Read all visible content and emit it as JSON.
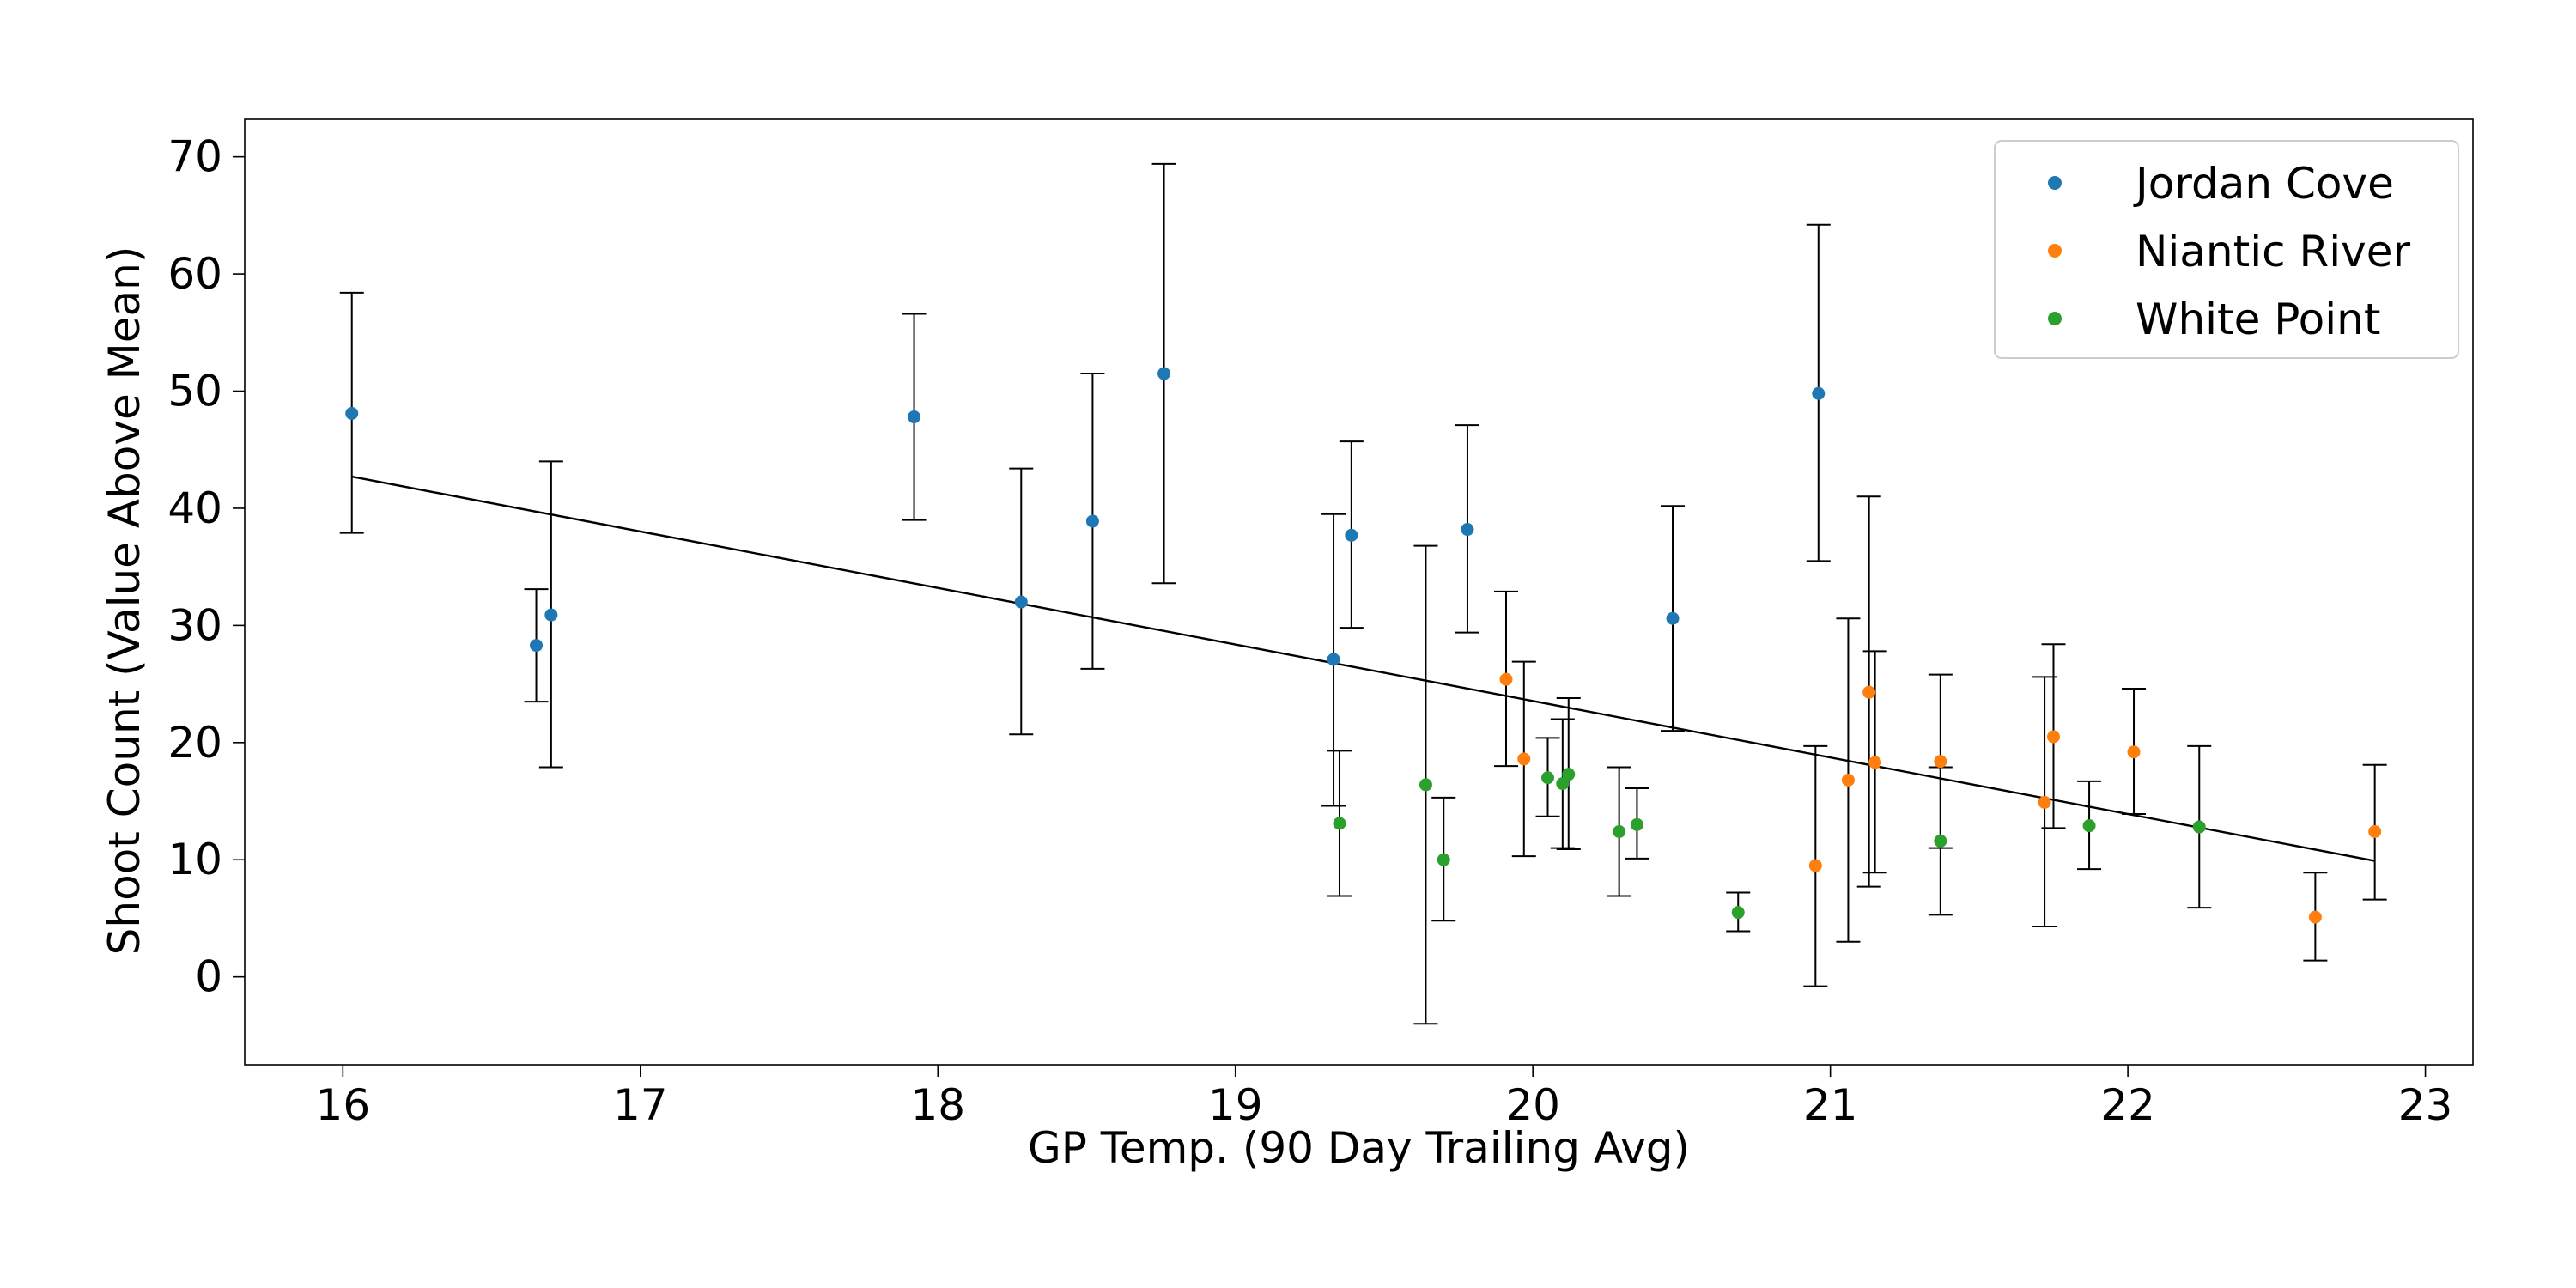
{
  "chart_data": {
    "type": "scatter",
    "title": "",
    "xlabel": "GP Temp. (90 Day Trailing Avg)",
    "ylabel": "Shoot Count (Value Above Mean)",
    "xlim": [
      15.67,
      23.16
    ],
    "ylim": [
      -7.5,
      73.2
    ],
    "xticks": [
      16,
      17,
      18,
      19,
      20,
      21,
      22,
      23
    ],
    "yticks": [
      0,
      10,
      20,
      30,
      40,
      50,
      60,
      70
    ],
    "grid": false,
    "legend_position": "top-right",
    "series": [
      {
        "name": "Jordan Cove",
        "color": "#1f77b4",
        "points": [
          {
            "x": 16.03,
            "y": 48.1,
            "lo": 37.9,
            "hi": 58.4
          },
          {
            "x": 16.65,
            "y": 28.3,
            "lo": 23.5,
            "hi": 33.1
          },
          {
            "x": 16.7,
            "y": 30.9,
            "lo": 17.9,
            "hi": 44.0
          },
          {
            "x": 17.92,
            "y": 47.8,
            "lo": 39.0,
            "hi": 56.6
          },
          {
            "x": 18.28,
            "y": 32.0,
            "lo": 20.7,
            "hi": 43.4
          },
          {
            "x": 18.52,
            "y": 38.9,
            "lo": 26.3,
            "hi": 51.5
          },
          {
            "x": 18.76,
            "y": 51.5,
            "lo": 33.6,
            "hi": 69.4
          },
          {
            "x": 19.33,
            "y": 27.1,
            "lo": 14.6,
            "hi": 39.5
          },
          {
            "x": 19.39,
            "y": 37.7,
            "lo": 29.8,
            "hi": 45.7
          },
          {
            "x": 19.78,
            "y": 38.2,
            "lo": 29.4,
            "hi": 47.1
          },
          {
            "x": 20.47,
            "y": 30.6,
            "lo": 21.0,
            "hi": 40.2
          },
          {
            "x": 20.96,
            "y": 49.8,
            "lo": 35.5,
            "hi": 64.2
          }
        ]
      },
      {
        "name": "Niantic River",
        "color": "#ff7f0e",
        "points": [
          {
            "x": 19.91,
            "y": 25.4,
            "lo": 18.0,
            "hi": 32.9
          },
          {
            "x": 19.97,
            "y": 18.6,
            "lo": 10.3,
            "hi": 26.9
          },
          {
            "x": 20.95,
            "y": 9.5,
            "lo": -0.8,
            "hi": 19.7
          },
          {
            "x": 21.06,
            "y": 16.8,
            "lo": 3.0,
            "hi": 30.6
          },
          {
            "x": 21.13,
            "y": 24.3,
            "lo": 7.7,
            "hi": 41.0
          },
          {
            "x": 21.15,
            "y": 18.3,
            "lo": 8.9,
            "hi": 27.8
          },
          {
            "x": 21.37,
            "y": 18.4,
            "lo": 11.0,
            "hi": 25.8
          },
          {
            "x": 21.72,
            "y": 14.9,
            "lo": 4.3,
            "hi": 25.6
          },
          {
            "x": 21.75,
            "y": 20.5,
            "lo": 12.7,
            "hi": 28.4
          },
          {
            "x": 22.02,
            "y": 19.2,
            "lo": 13.9,
            "hi": 24.6
          },
          {
            "x": 22.63,
            "y": 5.1,
            "lo": 1.4,
            "hi": 8.9
          },
          {
            "x": 22.83,
            "y": 12.4,
            "lo": 6.6,
            "hi": 18.1
          }
        ]
      },
      {
        "name": "White Point",
        "color": "#2ca02c",
        "points": [
          {
            "x": 19.35,
            "y": 13.1,
            "lo": 6.9,
            "hi": 19.3
          },
          {
            "x": 19.64,
            "y": 16.4,
            "lo": -4.0,
            "hi": 36.8
          },
          {
            "x": 19.7,
            "y": 10.0,
            "lo": 4.8,
            "hi": 15.3
          },
          {
            "x": 20.05,
            "y": 17.0,
            "lo": 13.7,
            "hi": 20.4
          },
          {
            "x": 20.1,
            "y": 16.5,
            "lo": 11.0,
            "hi": 22.0
          },
          {
            "x": 20.12,
            "y": 17.3,
            "lo": 10.9,
            "hi": 23.8
          },
          {
            "x": 20.29,
            "y": 12.4,
            "lo": 6.9,
            "hi": 17.9
          },
          {
            "x": 20.35,
            "y": 13.0,
            "lo": 10.1,
            "hi": 16.1
          },
          {
            "x": 20.69,
            "y": 5.5,
            "lo": 3.9,
            "hi": 7.2
          },
          {
            "x": 21.37,
            "y": 11.6,
            "lo": 5.3,
            "hi": 17.9
          },
          {
            "x": 21.87,
            "y": 12.9,
            "lo": 9.2,
            "hi": 16.7
          },
          {
            "x": 22.24,
            "y": 12.8,
            "lo": 5.9,
            "hi": 19.7
          }
        ]
      }
    ],
    "trend_line": {
      "color": "#000000",
      "x": [
        16.03,
        22.83
      ],
      "y": [
        42.7,
        9.9
      ]
    },
    "errorbar_color": "#000000"
  }
}
